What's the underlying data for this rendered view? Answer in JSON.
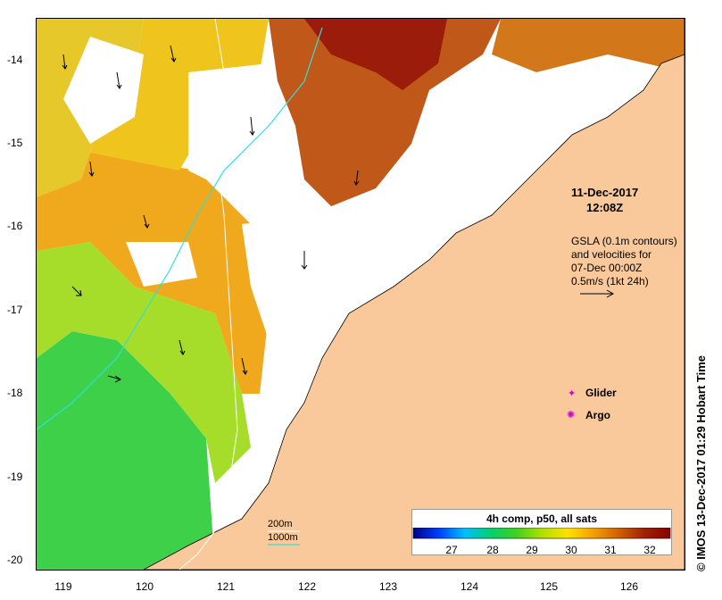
{
  "map": {
    "lat_ticks": [
      "-14",
      "-15",
      "-16",
      "-17",
      "-18",
      "-19",
      "-20"
    ],
    "lon_ticks": [
      "119",
      "120",
      "121",
      "122",
      "123",
      "124",
      "125",
      "126"
    ],
    "land_color": "#f9c99b",
    "no_data_color": "#ffffff"
  },
  "annotation": {
    "date": "11-Dec-2017",
    "time": "12:08Z",
    "gsla_lines": [
      "GSLA (0.1m contours)",
      "and velocities for",
      "07-Dec 00:00Z",
      "0.5m/s (1kt 24h)"
    ]
  },
  "legend": {
    "glider_label": "Glider",
    "argo_label": "Argo",
    "marker_color": "#d000d0"
  },
  "depth_legend": {
    "contour_200": "200m",
    "contour_1000": "1000m",
    "contour_color": "#33dddd"
  },
  "colorbar": {
    "title": "4h comp, p50, all sats",
    "ticks": [
      "27",
      "28",
      "29",
      "30",
      "31",
      "32"
    ],
    "colors": [
      "#00008b",
      "#0040ff",
      "#00bfff",
      "#00d070",
      "#40d020",
      "#b0e000",
      "#ffe000",
      "#f5a000",
      "#d06000",
      "#a02000",
      "#8b0000"
    ]
  },
  "watermark": "IMOS 13-Dec-2017 01:29 Hobart Time",
  "watermark_icon": "copyright-icon"
}
